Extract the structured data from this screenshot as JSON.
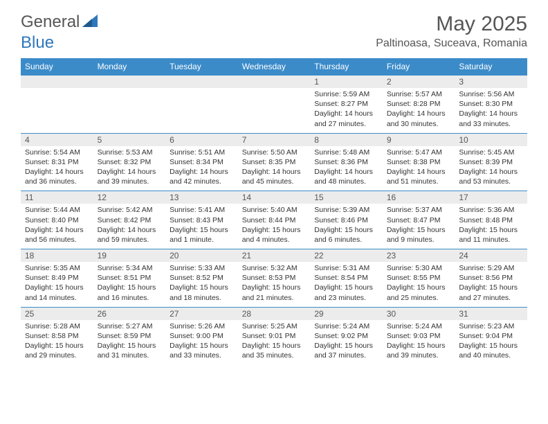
{
  "brand": {
    "text1": "General",
    "text2": "Blue"
  },
  "title": "May 2025",
  "location": "Paltinoasa, Suceava, Romania",
  "colors": {
    "header_bg": "#3b8bc9",
    "header_fg": "#ffffff",
    "numrow_bg": "#ececec",
    "text": "#333333",
    "brand_gray": "#555555",
    "brand_blue": "#2f77bb"
  },
  "day_names": [
    "Sunday",
    "Monday",
    "Tuesday",
    "Wednesday",
    "Thursday",
    "Friday",
    "Saturday"
  ],
  "weeks": [
    {
      "nums": [
        "",
        "",
        "",
        "",
        "1",
        "2",
        "3"
      ],
      "cells": [
        null,
        null,
        null,
        null,
        {
          "sunrise": "Sunrise: 5:59 AM",
          "sunset": "Sunset: 8:27 PM",
          "day1": "Daylight: 14 hours",
          "day2": "and 27 minutes."
        },
        {
          "sunrise": "Sunrise: 5:57 AM",
          "sunset": "Sunset: 8:28 PM",
          "day1": "Daylight: 14 hours",
          "day2": "and 30 minutes."
        },
        {
          "sunrise": "Sunrise: 5:56 AM",
          "sunset": "Sunset: 8:30 PM",
          "day1": "Daylight: 14 hours",
          "day2": "and 33 minutes."
        }
      ]
    },
    {
      "nums": [
        "4",
        "5",
        "6",
        "7",
        "8",
        "9",
        "10"
      ],
      "cells": [
        {
          "sunrise": "Sunrise: 5:54 AM",
          "sunset": "Sunset: 8:31 PM",
          "day1": "Daylight: 14 hours",
          "day2": "and 36 minutes."
        },
        {
          "sunrise": "Sunrise: 5:53 AM",
          "sunset": "Sunset: 8:32 PM",
          "day1": "Daylight: 14 hours",
          "day2": "and 39 minutes."
        },
        {
          "sunrise": "Sunrise: 5:51 AM",
          "sunset": "Sunset: 8:34 PM",
          "day1": "Daylight: 14 hours",
          "day2": "and 42 minutes."
        },
        {
          "sunrise": "Sunrise: 5:50 AM",
          "sunset": "Sunset: 8:35 PM",
          "day1": "Daylight: 14 hours",
          "day2": "and 45 minutes."
        },
        {
          "sunrise": "Sunrise: 5:48 AM",
          "sunset": "Sunset: 8:36 PM",
          "day1": "Daylight: 14 hours",
          "day2": "and 48 minutes."
        },
        {
          "sunrise": "Sunrise: 5:47 AM",
          "sunset": "Sunset: 8:38 PM",
          "day1": "Daylight: 14 hours",
          "day2": "and 51 minutes."
        },
        {
          "sunrise": "Sunrise: 5:45 AM",
          "sunset": "Sunset: 8:39 PM",
          "day1": "Daylight: 14 hours",
          "day2": "and 53 minutes."
        }
      ]
    },
    {
      "nums": [
        "11",
        "12",
        "13",
        "14",
        "15",
        "16",
        "17"
      ],
      "cells": [
        {
          "sunrise": "Sunrise: 5:44 AM",
          "sunset": "Sunset: 8:40 PM",
          "day1": "Daylight: 14 hours",
          "day2": "and 56 minutes."
        },
        {
          "sunrise": "Sunrise: 5:42 AM",
          "sunset": "Sunset: 8:42 PM",
          "day1": "Daylight: 14 hours",
          "day2": "and 59 minutes."
        },
        {
          "sunrise": "Sunrise: 5:41 AM",
          "sunset": "Sunset: 8:43 PM",
          "day1": "Daylight: 15 hours",
          "day2": "and 1 minute."
        },
        {
          "sunrise": "Sunrise: 5:40 AM",
          "sunset": "Sunset: 8:44 PM",
          "day1": "Daylight: 15 hours",
          "day2": "and 4 minutes."
        },
        {
          "sunrise": "Sunrise: 5:39 AM",
          "sunset": "Sunset: 8:46 PM",
          "day1": "Daylight: 15 hours",
          "day2": "and 6 minutes."
        },
        {
          "sunrise": "Sunrise: 5:37 AM",
          "sunset": "Sunset: 8:47 PM",
          "day1": "Daylight: 15 hours",
          "day2": "and 9 minutes."
        },
        {
          "sunrise": "Sunrise: 5:36 AM",
          "sunset": "Sunset: 8:48 PM",
          "day1": "Daylight: 15 hours",
          "day2": "and 11 minutes."
        }
      ]
    },
    {
      "nums": [
        "18",
        "19",
        "20",
        "21",
        "22",
        "23",
        "24"
      ],
      "cells": [
        {
          "sunrise": "Sunrise: 5:35 AM",
          "sunset": "Sunset: 8:49 PM",
          "day1": "Daylight: 15 hours",
          "day2": "and 14 minutes."
        },
        {
          "sunrise": "Sunrise: 5:34 AM",
          "sunset": "Sunset: 8:51 PM",
          "day1": "Daylight: 15 hours",
          "day2": "and 16 minutes."
        },
        {
          "sunrise": "Sunrise: 5:33 AM",
          "sunset": "Sunset: 8:52 PM",
          "day1": "Daylight: 15 hours",
          "day2": "and 18 minutes."
        },
        {
          "sunrise": "Sunrise: 5:32 AM",
          "sunset": "Sunset: 8:53 PM",
          "day1": "Daylight: 15 hours",
          "day2": "and 21 minutes."
        },
        {
          "sunrise": "Sunrise: 5:31 AM",
          "sunset": "Sunset: 8:54 PM",
          "day1": "Daylight: 15 hours",
          "day2": "and 23 minutes."
        },
        {
          "sunrise": "Sunrise: 5:30 AM",
          "sunset": "Sunset: 8:55 PM",
          "day1": "Daylight: 15 hours",
          "day2": "and 25 minutes."
        },
        {
          "sunrise": "Sunrise: 5:29 AM",
          "sunset": "Sunset: 8:56 PM",
          "day1": "Daylight: 15 hours",
          "day2": "and 27 minutes."
        }
      ]
    },
    {
      "nums": [
        "25",
        "26",
        "27",
        "28",
        "29",
        "30",
        "31"
      ],
      "cells": [
        {
          "sunrise": "Sunrise: 5:28 AM",
          "sunset": "Sunset: 8:58 PM",
          "day1": "Daylight: 15 hours",
          "day2": "and 29 minutes."
        },
        {
          "sunrise": "Sunrise: 5:27 AM",
          "sunset": "Sunset: 8:59 PM",
          "day1": "Daylight: 15 hours",
          "day2": "and 31 minutes."
        },
        {
          "sunrise": "Sunrise: 5:26 AM",
          "sunset": "Sunset: 9:00 PM",
          "day1": "Daylight: 15 hours",
          "day2": "and 33 minutes."
        },
        {
          "sunrise": "Sunrise: 5:25 AM",
          "sunset": "Sunset: 9:01 PM",
          "day1": "Daylight: 15 hours",
          "day2": "and 35 minutes."
        },
        {
          "sunrise": "Sunrise: 5:24 AM",
          "sunset": "Sunset: 9:02 PM",
          "day1": "Daylight: 15 hours",
          "day2": "and 37 minutes."
        },
        {
          "sunrise": "Sunrise: 5:24 AM",
          "sunset": "Sunset: 9:03 PM",
          "day1": "Daylight: 15 hours",
          "day2": "and 39 minutes."
        },
        {
          "sunrise": "Sunrise: 5:23 AM",
          "sunset": "Sunset: 9:04 PM",
          "day1": "Daylight: 15 hours",
          "day2": "and 40 minutes."
        }
      ]
    }
  ]
}
